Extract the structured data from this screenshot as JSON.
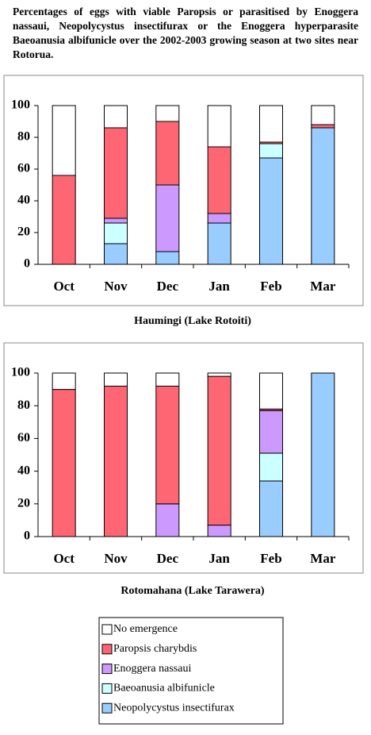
{
  "title": "Percentages of eggs with viable Paropsis or parasitised by Enoggera nassaui, Neopolycystus insectifurax or the Enoggera hyperparasite Baeoanusia albifunicle over the 2002-2003 growing season at two sites near Rotorua.",
  "chart_data": [
    {
      "type": "bar",
      "stacked": true,
      "caption": "Haumingi (Lake Rotoiti)",
      "categories": [
        "Oct",
        "Nov",
        "Dec",
        "Jan",
        "Feb",
        "Mar"
      ],
      "series": [
        {
          "name": "No emergence",
          "color": "#ffffff",
          "values": [
            44,
            14,
            10,
            26,
            23,
            12
          ]
        },
        {
          "name": "Paropsis charybdis",
          "color": "#ff6674",
          "values": [
            56,
            57,
            40,
            42,
            1,
            2
          ]
        },
        {
          "name": "Enoggera nassaui",
          "color": "#cc99ff",
          "values": [
            0,
            3,
            42,
            6,
            0,
            0
          ]
        },
        {
          "name": "Baeoanusia albifunicle",
          "color": "#ccffff",
          "values": [
            0,
            13,
            0,
            0,
            9,
            0
          ]
        },
        {
          "name": "Neopolycystus insectifurax",
          "color": "#99ccff",
          "values": [
            0,
            13,
            8,
            26,
            67,
            86
          ]
        }
      ],
      "ylim": [
        0,
        100
      ],
      "yticks": [
        0,
        20,
        40,
        60,
        80,
        100
      ]
    },
    {
      "type": "bar",
      "stacked": true,
      "caption": "Rotomahana (Lake Tarawera)",
      "categories": [
        "Oct",
        "Nov",
        "Dec",
        "Jan",
        "Feb",
        "Mar"
      ],
      "series": [
        {
          "name": "No emergence",
          "color": "#ffffff",
          "values": [
            10,
            8,
            8,
            2,
            22,
            0
          ]
        },
        {
          "name": "Paropsis charybdis",
          "color": "#ff6674",
          "values": [
            90,
            92,
            72,
            91,
            1,
            0
          ]
        },
        {
          "name": "Enoggera nassaui",
          "color": "#cc99ff",
          "values": [
            0,
            0,
            20,
            7,
            26,
            0
          ]
        },
        {
          "name": "Baeoanusia albifunicle",
          "color": "#ccffff",
          "values": [
            0,
            0,
            0,
            0,
            17,
            0
          ]
        },
        {
          "name": "Neopolycystus insectifurax",
          "color": "#99ccff",
          "values": [
            0,
            0,
            0,
            0,
            34,
            100
          ]
        }
      ],
      "ylim": [
        0,
        100
      ],
      "yticks": [
        0,
        20,
        40,
        60,
        80,
        100
      ]
    }
  ]
}
